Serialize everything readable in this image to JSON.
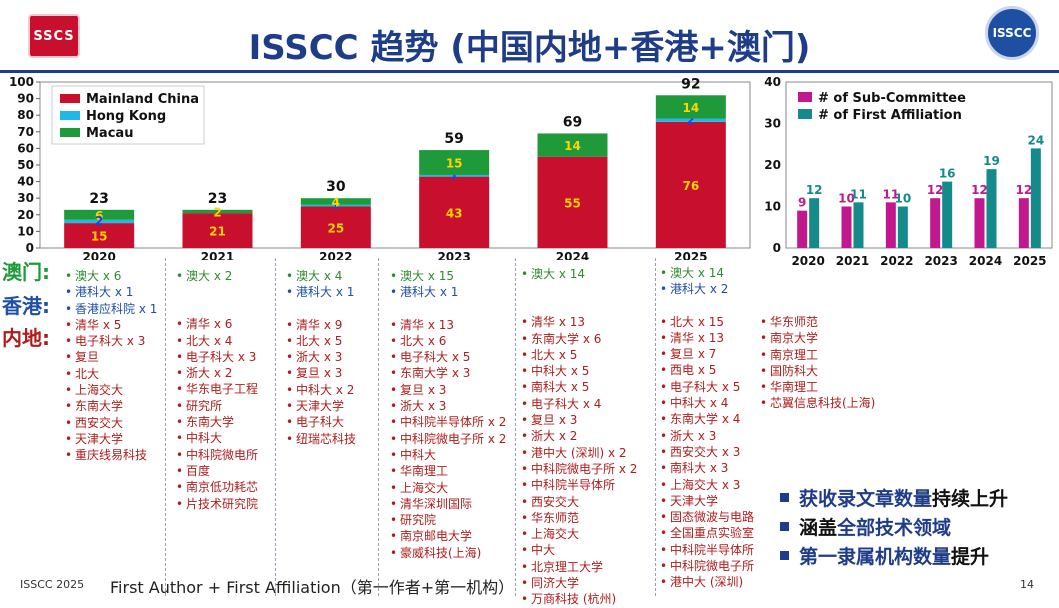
{
  "title": "ISSCC 趋势 (中国内地+香港+澳门)",
  "logo_left_text": "SSCS",
  "logo_right_text": "ISSCC",
  "colors": {
    "mainland": "#c8102e",
    "hongkong": "#22b8e6",
    "macau": "#1e9a3a",
    "subcommittee": "#c2188f",
    "affiliation": "#148a8a",
    "title": "#1f3c88"
  },
  "chart_data": [
    {
      "type": "bar",
      "stacked": true,
      "categories": [
        "2020",
        "2021",
        "2022",
        "2023",
        "2024",
        "2025"
      ],
      "series": [
        {
          "name": "Mainland China",
          "values": [
            15,
            21,
            25,
            43,
            55,
            76
          ]
        },
        {
          "name": "Hong Kong",
          "values": [
            2,
            0,
            1,
            1,
            0,
            2
          ]
        },
        {
          "name": "Macau",
          "values": [
            6,
            2,
            4,
            15,
            14,
            14
          ]
        }
      ],
      "segment_labels": [
        [
          "15",
          "",
          "6"
        ],
        [
          "21",
          "",
          "2"
        ],
        [
          "25",
          "1",
          "4"
        ],
        [
          "43",
          "1",
          "15"
        ],
        [
          "55",
          "",
          "14"
        ],
        [
          "76",
          "2",
          "14"
        ]
      ],
      "hk_label_2020": "2",
      "totals": [
        23,
        23,
        30,
        59,
        69,
        92
      ],
      "ylim": [
        0,
        100
      ],
      "yticks": [
        0,
        10,
        20,
        30,
        40,
        50,
        60,
        70,
        80,
        90,
        100
      ],
      "grid": false,
      "legend_position": "top-left"
    },
    {
      "type": "bar",
      "categories": [
        "2020",
        "2021",
        "2022",
        "2023",
        "2024",
        "2025"
      ],
      "series": [
        {
          "name": "# of Sub-Committee",
          "values": [
            9,
            10,
            11,
            12,
            12,
            12
          ]
        },
        {
          "name": "# of First Affiliation",
          "values": [
            12,
            11,
            10,
            16,
            19,
            24
          ]
        }
      ],
      "ylim": [
        0,
        40
      ],
      "yticks": [
        0,
        10,
        20,
        30,
        40
      ],
      "grid": false,
      "legend_position": "top-left"
    }
  ],
  "row_labels": {
    "macau": "澳门:",
    "hongkong": "香港:",
    "mainland": "内地:"
  },
  "columns": [
    {
      "macau": [
        "澳大 x 6"
      ],
      "hongkong": [
        "港科大 x 1",
        "香港应科院 x 1"
      ],
      "mainland": [
        "清华 x 5",
        "电子科大 x 3",
        "复旦",
        "北大",
        "上海交大",
        "东南大学",
        "西安交大",
        "天津大学",
        "重庆线易科技"
      ]
    },
    {
      "macau": [
        "澳大 x 2"
      ],
      "hongkong": [],
      "mainland": [
        "清华 x 6",
        "北大 x 4",
        "电子科大 x 3",
        "浙大 x 2",
        "华东电子工程",
        "研究所",
        "东南大学",
        "中科大",
        "中科院微电所",
        "百度",
        "南京低功耗芯",
        "片技术研究院"
      ]
    },
    {
      "macau": [
        "澳大 x 4"
      ],
      "hongkong": [
        "港科大 x 1"
      ],
      "mainland": [
        "清华 x 9",
        "北大 x 5",
        "浙大 x 3",
        "复旦 x 3",
        "中科大 x 2",
        "天津大学",
        "电子科大",
        "纽瑞芯科技"
      ]
    },
    {
      "macau": [
        "澳大 x 15"
      ],
      "hongkong": [
        "港科大 x 1"
      ],
      "mainland": [
        "清华 x 13",
        "北大 x 6",
        "电子科大 x 5",
        "东南大学 x 3",
        "复旦 x 3",
        "浙大 x 3",
        "中科院半导体所 x 2",
        "中科院微电子所 x 2",
        "中科大",
        "华南理工",
        "上海交大",
        "清华深圳国际",
        "研究院",
        "南京邮电大学",
        "豪威科技(上海)"
      ]
    },
    {
      "macau": [
        "澳大 x 14"
      ],
      "hongkong": [],
      "mainland": [
        "清华 x 13",
        "东南大学 x 6",
        "北大 x 5",
        "中科大 x 5",
        "南科大 x 5",
        "电子科大 x 4",
        "复旦 x 3",
        "浙大 x 2",
        "港中大 (深圳) x 2",
        "中科院微电子所 x 2",
        "中科院半导体所",
        "西安交大",
        "华东师范",
        "上海交大",
        "中大",
        "北京理工大学",
        "同济大学",
        "万商科技 (杭州)"
      ]
    },
    {
      "macau": [
        "澳大 x 14"
      ],
      "hongkong": [
        "港科大 x 2"
      ],
      "mainland": [
        "北大 x 15",
        "清华 x 13",
        "复旦 x 7",
        "西电 x 5",
        "电子科大 x 5",
        "中科大 x 4",
        "东南大学 x 4",
        "浙大 x 3",
        "西安交大 x 3",
        "南科大 x 3",
        "上海交大 x 3",
        "天津大学",
        "固态微波与电路",
        "全国重点实验室",
        "中科院半导体所",
        "中科院微电子所",
        "港中大 (深圳)"
      ]
    },
    {
      "macau": [],
      "hongkong": [],
      "mainland": [
        "华东师范",
        "南京大学",
        "南京理工",
        "国防科大",
        "华南理工",
        "芯翼信息科技(上海)"
      ]
    }
  ],
  "bullets": [
    {
      "pre": "获收录文章数量",
      "post": "持续上升"
    },
    {
      "pre": "涵盖",
      "post": "全部技术领域"
    },
    {
      "pre": "第一隶属机构数量",
      "post": "提升"
    }
  ],
  "footer": {
    "left": "ISSCC 2025",
    "middle": "First Author + First Affiliation（第一作者+第一机构）",
    "page": "14"
  }
}
